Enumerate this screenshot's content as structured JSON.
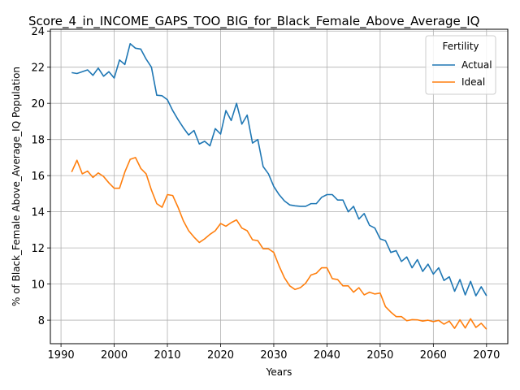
{
  "chart_data": {
    "type": "line",
    "title": "Score_4_in_INCOME_GAPS_TOO_BIG_for_Black_Female_Above_Average_IQ",
    "xlabel": "Years",
    "ylabel": "% of Black_Female Above_Average_IQ Population",
    "xlim": [
      1988,
      2074
    ],
    "ylim": [
      6.7,
      24.1
    ],
    "xticks": [
      1990,
      2000,
      2010,
      2020,
      2030,
      2040,
      2050,
      2060,
      2070
    ],
    "yticks": [
      8,
      10,
      12,
      14,
      16,
      18,
      20,
      22,
      24
    ],
    "grid": true,
    "legend": {
      "title": "Fertility",
      "placement": "top-right"
    },
    "x": [
      1992,
      1993,
      1994,
      1995,
      1996,
      1997,
      1998,
      1999,
      2000,
      2001,
      2002,
      2003,
      2004,
      2005,
      2006,
      2007,
      2008,
      2009,
      2010,
      2011,
      2012,
      2013,
      2014,
      2015,
      2016,
      2017,
      2018,
      2019,
      2020,
      2021,
      2022,
      2023,
      2024,
      2025,
      2026,
      2027,
      2028,
      2029,
      2030,
      2031,
      2032,
      2033,
      2034,
      2035,
      2036,
      2037,
      2038,
      2039,
      2040,
      2041,
      2042,
      2043,
      2044,
      2045,
      2046,
      2047,
      2048,
      2049,
      2050,
      2051,
      2052,
      2053,
      2054,
      2055,
      2056,
      2057,
      2058,
      2059,
      2060,
      2061,
      2062,
      2063,
      2064,
      2065,
      2066,
      2067,
      2068,
      2069,
      2070
    ],
    "series": [
      {
        "name": "Actual",
        "color": "#1f77b4",
        "values": [
          21.7,
          21.65,
          21.75,
          21.85,
          21.55,
          21.95,
          21.5,
          21.75,
          21.4,
          22.4,
          22.15,
          23.3,
          23.05,
          23.0,
          22.45,
          22.0,
          20.45,
          20.42,
          20.2,
          19.6,
          19.1,
          18.65,
          18.25,
          18.5,
          17.75,
          17.9,
          17.65,
          18.6,
          18.3,
          19.6,
          19.05,
          20.0,
          18.85,
          19.35,
          17.8,
          18.0,
          16.5,
          16.1,
          15.4,
          14.95,
          14.6,
          14.38,
          14.33,
          14.3,
          14.3,
          14.45,
          14.45,
          14.8,
          14.95,
          14.95,
          14.65,
          14.65,
          14.0,
          14.3,
          13.6,
          13.9,
          13.25,
          13.1,
          12.5,
          12.4,
          11.75,
          11.85,
          11.25,
          11.5,
          10.9,
          11.35,
          10.7,
          11.1,
          10.55,
          10.9,
          10.2,
          10.4,
          9.6,
          10.25,
          9.4,
          10.15,
          9.35,
          9.85,
          9.35
        ]
      },
      {
        "name": "Ideal",
        "color": "#ff7f0e",
        "values": [
          16.2,
          16.85,
          16.1,
          16.25,
          15.9,
          16.15,
          15.95,
          15.6,
          15.3,
          15.3,
          16.2,
          16.9,
          17.0,
          16.4,
          16.1,
          15.2,
          14.45,
          14.25,
          14.95,
          14.9,
          14.25,
          13.5,
          12.95,
          12.6,
          12.3,
          12.5,
          12.75,
          12.95,
          13.35,
          13.2,
          13.4,
          13.55,
          13.1,
          12.95,
          12.45,
          12.4,
          11.95,
          11.95,
          11.75,
          11.0,
          10.35,
          9.9,
          9.7,
          9.8,
          10.05,
          10.5,
          10.6,
          10.9,
          10.9,
          10.3,
          10.25,
          9.9,
          9.9,
          9.55,
          9.8,
          9.4,
          9.55,
          9.45,
          9.5,
          8.75,
          8.45,
          8.2,
          8.2,
          7.97,
          8.03,
          8.02,
          7.95,
          8.0,
          7.92,
          7.99,
          7.78,
          7.95,
          7.55,
          8.02,
          7.57,
          8.08,
          7.6,
          7.83,
          7.5
        ]
      }
    ]
  }
}
